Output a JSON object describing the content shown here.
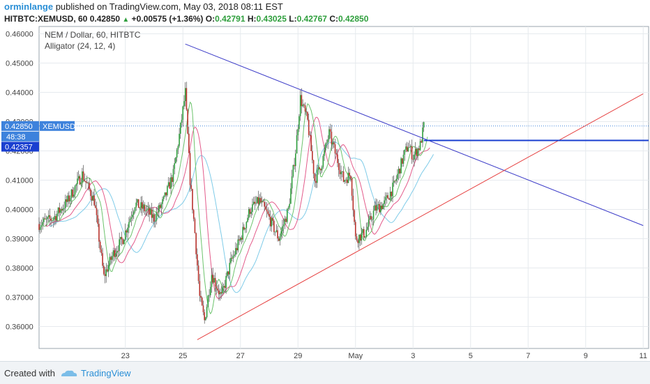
{
  "header": {
    "user": "orminlange",
    "published": "published on TradingView.com, May 03, 2018 08:11 EST",
    "symbol": "HITBTC:XEMUSD, 60",
    "last": "0.42850",
    "change": "+0.00575 (+1.36%)",
    "o_label": "O:",
    "o_value": "0.42791",
    "h_label": "H:",
    "h_value": "0.43025",
    "l_label": "L:",
    "l_value": "0.42767",
    "c_label": "C:",
    "c_value": "0.42850"
  },
  "legend": {
    "title": "NEM / Dollar, 60, HITBTC",
    "indicator": "Alligator (24, 12, 4)"
  },
  "price_labels": {
    "current_price": "0.42850",
    "symbol_tag": "XEMUSD",
    "countdown": "48:38",
    "line_price": "0.42357"
  },
  "footer": {
    "created_with": "Created with",
    "brand": "TradingView"
  },
  "colors": {
    "bull": "#2e9e3c",
    "bear": "#b8322c",
    "blue_line": "#3c3cc8",
    "red_line": "#e64040",
    "hline": "#1a3fd0",
    "jaw": "#7ecbe8",
    "teeth": "#e35a8a",
    "lips": "#6cc36c",
    "price_label_bg": "#3d82dc",
    "line_label_bg": "#1a3fd0"
  },
  "chart_data": {
    "type": "candlestick",
    "title": "NEM / Dollar, 60, HITBTC",
    "ylim": [
      0.3525,
      0.4625
    ],
    "xlim_days": [
      "Apr 20",
      "May 10"
    ],
    "y_ticks": [
      "0.46000",
      "0.45000",
      "0.44000",
      "0.43000",
      "0.42000",
      "0.41000",
      "0.40000",
      "0.39000",
      "0.38000",
      "0.37000",
      "0.36000"
    ],
    "x_ticks": [
      {
        "label": "23",
        "date": "Apr 23"
      },
      {
        "label": "25",
        "date": "Apr 25"
      },
      {
        "label": "27",
        "date": "Apr 27"
      },
      {
        "label": "29",
        "date": "Apr 29"
      },
      {
        "label": "May",
        "date": "May 1"
      },
      {
        "label": "3",
        "date": "May 3"
      },
      {
        "label": "5",
        "date": "May 5"
      },
      {
        "label": "7",
        "date": "May 7"
      },
      {
        "label": "9",
        "date": "May 9"
      },
      {
        "label": "11",
        "date": "May 11"
      }
    ],
    "price_path": [
      {
        "date": "Apr 20 00:00",
        "price": 0.395
      },
      {
        "date": "Apr 20 12:00",
        "price": 0.397
      },
      {
        "date": "Apr 21 00:00",
        "price": 0.403
      },
      {
        "date": "Apr 21 12:00",
        "price": 0.412
      },
      {
        "date": "Apr 21 22:00",
        "price": 0.403
      },
      {
        "date": "Apr 22 06:00",
        "price": 0.377
      },
      {
        "date": "Apr 22 14:00",
        "price": 0.385
      },
      {
        "date": "Apr 22 22:00",
        "price": 0.39
      },
      {
        "date": "Apr 23 08:00",
        "price": 0.402
      },
      {
        "date": "Apr 23 16:00",
        "price": 0.4
      },
      {
        "date": "Apr 24 00:00",
        "price": 0.397
      },
      {
        "date": "Apr 24 08:00",
        "price": 0.403
      },
      {
        "date": "Apr 24 16:00",
        "price": 0.412
      },
      {
        "date": "Apr 24 22:00",
        "price": 0.428
      },
      {
        "date": "Apr 25 02:00",
        "price": 0.44
      },
      {
        "date": "Apr 25 06:00",
        "price": 0.41
      },
      {
        "date": "Apr 25 10:00",
        "price": 0.392
      },
      {
        "date": "Apr 25 14:00",
        "price": 0.37
      },
      {
        "date": "Apr 25 18:00",
        "price": 0.362
      },
      {
        "date": "Apr 26 00:00",
        "price": 0.378
      },
      {
        "date": "Apr 26 08:00",
        "price": 0.37
      },
      {
        "date": "Apr 26 16:00",
        "price": 0.382
      },
      {
        "date": "Apr 27 00:00",
        "price": 0.39
      },
      {
        "date": "Apr 27 08:00",
        "price": 0.4
      },
      {
        "date": "Apr 27 16:00",
        "price": 0.403
      },
      {
        "date": "Apr 28 00:00",
        "price": 0.397
      },
      {
        "date": "Apr 28 08:00",
        "price": 0.39
      },
      {
        "date": "Apr 28 16:00",
        "price": 0.4
      },
      {
        "date": "Apr 28 22:00",
        "price": 0.42
      },
      {
        "date": "Apr 29 02:00",
        "price": 0.438
      },
      {
        "date": "Apr 29 08:00",
        "price": 0.43
      },
      {
        "date": "Apr 29 14:00",
        "price": 0.41
      },
      {
        "date": "Apr 29 20:00",
        "price": 0.416
      },
      {
        "date": "Apr 30 02:00",
        "price": 0.426
      },
      {
        "date": "Apr 30 08:00",
        "price": 0.418
      },
      {
        "date": "Apr 30 14:00",
        "price": 0.41
      },
      {
        "date": "Apr 30 20:00",
        "price": 0.412
      },
      {
        "date": "May 1 00:00",
        "price": 0.39
      },
      {
        "date": "May 1 08:00",
        "price": 0.392
      },
      {
        "date": "May 1 16:00",
        "price": 0.4
      },
      {
        "date": "May 2 00:00",
        "price": 0.402
      },
      {
        "date": "May 2 08:00",
        "price": 0.408
      },
      {
        "date": "May 2 16:00",
        "price": 0.418
      },
      {
        "date": "May 2 20:00",
        "price": 0.422
      },
      {
        "date": "May 3 00:00",
        "price": 0.418
      },
      {
        "date": "May 3 06:00",
        "price": 0.422
      },
      {
        "date": "May 3 09:00",
        "price": 0.4285
      }
    ],
    "annotations": [
      {
        "type": "trendline",
        "color": "blue",
        "from": {
          "date": "Apr 25 02:00",
          "price": 0.4565
        },
        "to": {
          "date": "May 11 00:00",
          "price": 0.3945
        }
      },
      {
        "type": "trendline",
        "color": "red",
        "from": {
          "date": "Apr 25 12:00",
          "price": 0.3555
        },
        "to": {
          "date": "May 11 00:00",
          "price": 0.4395
        }
      },
      {
        "type": "horizontal",
        "color": "blue",
        "price": 0.42357,
        "from": "May 3 09:00"
      },
      {
        "type": "price_line",
        "price": 0.4285,
        "style": "dotted"
      }
    ],
    "indicator": {
      "name": "Alligator",
      "params": [
        24,
        12,
        4
      ]
    }
  }
}
